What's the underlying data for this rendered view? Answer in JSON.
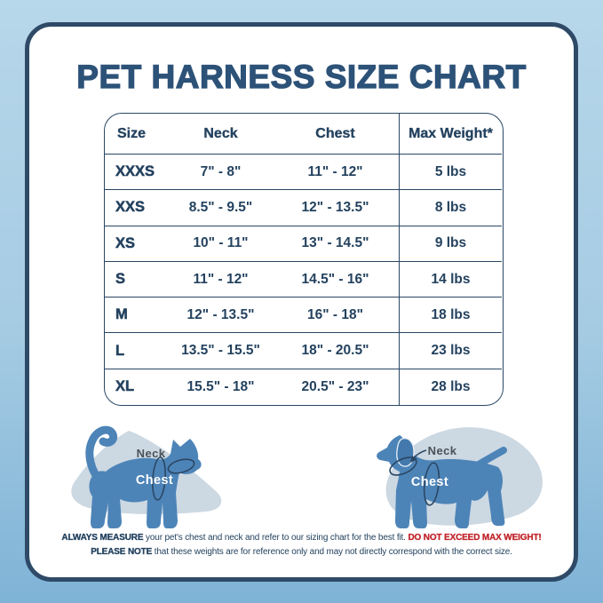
{
  "title": "PET HARNESS SIZE CHART",
  "table": {
    "headers": [
      "Size",
      "Neck",
      "Chest",
      "Max Weight*"
    ],
    "rows": [
      {
        "size": "XXXS",
        "neck": "7\" - 8\"",
        "chest": "11\" - 12\"",
        "max_weight": "5 lbs"
      },
      {
        "size": "XXS",
        "neck": "8.5\" - 9.5\"",
        "chest": "12\" - 13.5\"",
        "max_weight": "8 lbs"
      },
      {
        "size": "XS",
        "neck": "10\" - 11\"",
        "chest": "13\" - 14.5\"",
        "max_weight": "9 lbs"
      },
      {
        "size": "S",
        "neck": "11\" - 12\"",
        "chest": "14.5\" - 16\"",
        "max_weight": "14 lbs"
      },
      {
        "size": "M",
        "neck": "12\" - 13.5\"",
        "chest": "16\" - 18\"",
        "max_weight": "18 lbs"
      },
      {
        "size": "L",
        "neck": "13.5\" - 15.5\"",
        "chest": "18\" - 20.5\"",
        "max_weight": "23 lbs"
      },
      {
        "size": "XL",
        "neck": "15.5\" - 18\"",
        "chest": "20.5\" - 23\"",
        "max_weight": "28 lbs"
      }
    ]
  },
  "illustrations": {
    "cat": {
      "neck_label": "Neck",
      "chest_label": "Chest"
    },
    "dog": {
      "neck_label": "Neck",
      "chest_label": "Chest"
    }
  },
  "footer": {
    "line1_bold": "ALWAYS MEASURE",
    "line1_text": " your pet's chest and neck and refer to our sizing chart for the best fit. ",
    "line1_warning": "DO NOT EXCEED MAX WEIGHT!",
    "line2_bold": "PLEASE NOTE",
    "line2_text": " that these weights are for reference only and may not directly correspond with the correct size."
  },
  "colors": {
    "bg-top": "#b7d7ea",
    "bg-mid": "#a5cbe3",
    "bg-bottom": "#7fb3d6",
    "card-border": "#2e4a67",
    "title-navy": "#2d5278",
    "navy": "#24425f",
    "line": "#2a4764",
    "red": "#c1272d",
    "pet-blue": "#4d84b8",
    "pet-blue-dark": "#4379ad",
    "blob": "#ccd8e2",
    "label-gray": "#4b5258"
  }
}
